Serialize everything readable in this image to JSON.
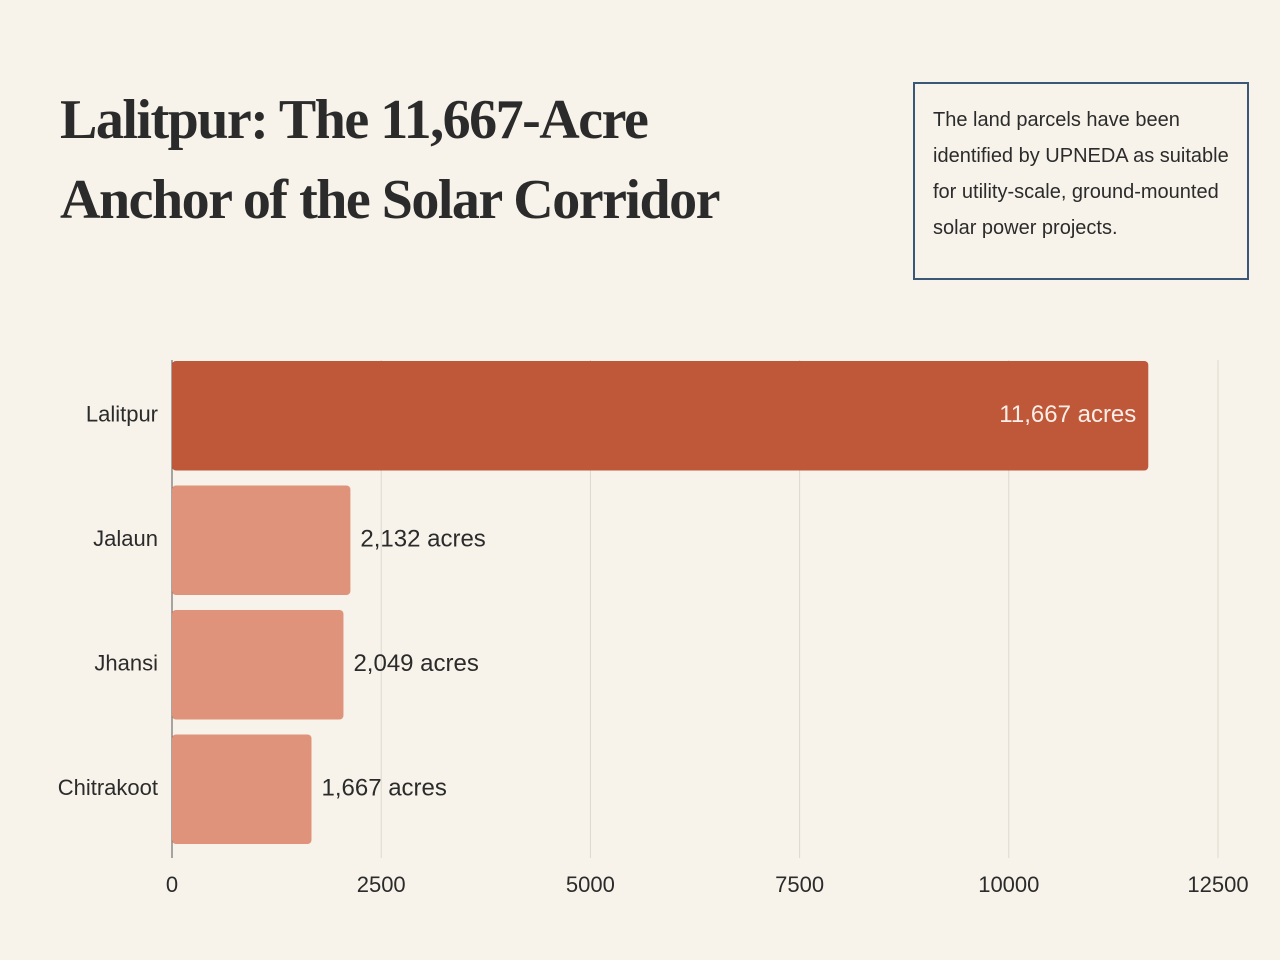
{
  "chart_data": {
    "type": "barh",
    "title": "Lalitpur: The 11,667-Acre Anchor of the Solar Corridor",
    "annotation": "The land parcels have been identified by UPNEDA as suitable for utility-scale, ground-mounted solar power projects.",
    "categories": [
      "Lalitpur",
      "Jalaun",
      "Jhansi",
      "Chitrakoot"
    ],
    "values": [
      11667,
      2132,
      2049,
      1667
    ],
    "value_labels": [
      "11,667 acres",
      "2,132 acres",
      "2,049 acres",
      "1,667 acres"
    ],
    "colors": [
      "#bf5838",
      "#e0937b",
      "#e0937b",
      "#e0937b"
    ],
    "xlim": [
      0,
      12500
    ],
    "xticks": [
      0,
      2500,
      5000,
      7500,
      10000,
      12500
    ],
    "grid": true
  }
}
